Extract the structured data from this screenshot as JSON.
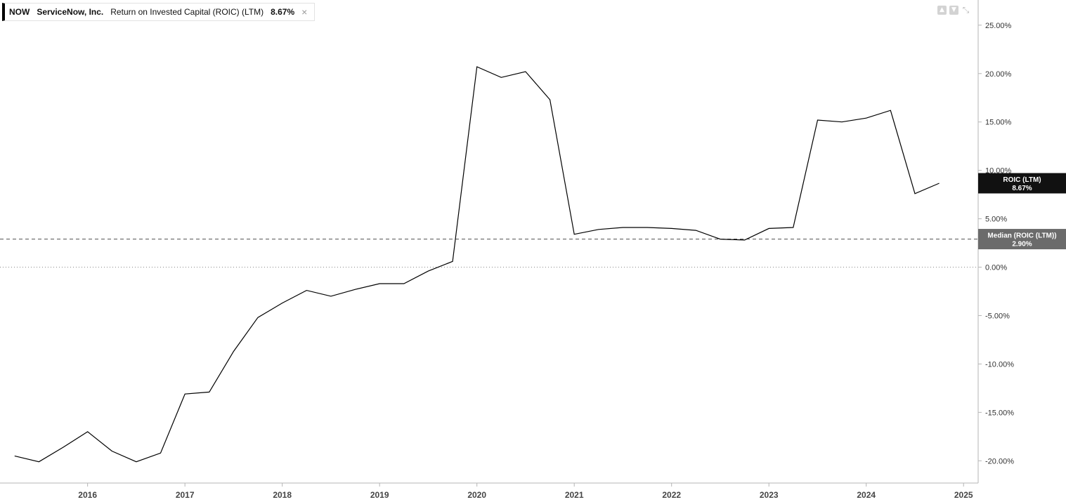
{
  "legend": {
    "ticker": "NOW",
    "company": "ServiceNow, Inc.",
    "metric": "Return on Invested Capital (ROIC) (LTM)",
    "value": "8.67%",
    "close_icon": "close-icon"
  },
  "toolbar": {
    "icons": [
      "arrow-up-icon",
      "arrow-down-icon",
      "collapse-icon"
    ]
  },
  "colors": {
    "line": "#000000",
    "badge_series": "#111111",
    "badge_median": "#6b6b6b"
  },
  "chart_data": {
    "type": "line",
    "title": "",
    "xlabel": "",
    "ylabel": "",
    "x_ticks": [
      "2016",
      "2017",
      "2018",
      "2019",
      "2020",
      "2021",
      "2022",
      "2023",
      "2024",
      "2025"
    ],
    "y_ticks": [
      "25.00%",
      "20.00%",
      "15.00%",
      "10.00%",
      "5.00%",
      "0.00%",
      "-5.00%",
      "-10.00%",
      "-15.00%",
      "-20.00%"
    ],
    "y_tick_values": [
      25,
      20,
      15,
      10,
      5,
      0,
      -5,
      -10,
      -15,
      -20
    ],
    "xlim": [
      2015.1,
      2025.15
    ],
    "ylim": [
      -22.3,
      27.6
    ],
    "series": [
      {
        "name": "ROIC (LTM)",
        "x": [
          2015.25,
          2015.5,
          2015.75,
          2016.0,
          2016.25,
          2016.5,
          2016.75,
          2017.0,
          2017.25,
          2017.5,
          2017.75,
          2018.0,
          2018.25,
          2018.5,
          2018.75,
          2019.0,
          2019.25,
          2019.5,
          2019.75,
          2020.0,
          2020.25,
          2020.5,
          2020.75,
          2021.0,
          2021.25,
          2021.5,
          2021.75,
          2022.0,
          2022.25,
          2022.5,
          2022.75,
          2023.0,
          2023.25,
          2023.5,
          2023.75,
          2024.0,
          2024.25,
          2024.5,
          2024.75
        ],
        "y": [
          -19.5,
          -20.1,
          -18.6,
          -17.0,
          -19.0,
          -20.1,
          -19.2,
          -13.1,
          -12.9,
          -8.7,
          -5.2,
          -3.7,
          -2.4,
          -3.0,
          -2.3,
          -1.7,
          -1.7,
          -0.4,
          0.6,
          20.7,
          19.6,
          20.2,
          17.3,
          3.4,
          3.9,
          4.1,
          4.1,
          4.0,
          3.8,
          2.9,
          2.8,
          4.0,
          4.1,
          15.2,
          15.0,
          15.4,
          16.2,
          7.6,
          8.67
        ]
      }
    ],
    "reference_lines": [
      {
        "name": "Median (ROIC (LTM))",
        "value": 2.9,
        "style": "dashed"
      },
      {
        "name": "zero",
        "value": 0,
        "style": "dotted"
      }
    ],
    "badges": [
      {
        "label": "ROIC (LTM)",
        "value": "8.67%",
        "y": 8.67
      },
      {
        "label": "Median (ROIC (LTM))",
        "value": "2.90%",
        "y": 2.9
      }
    ],
    "grid": false
  }
}
